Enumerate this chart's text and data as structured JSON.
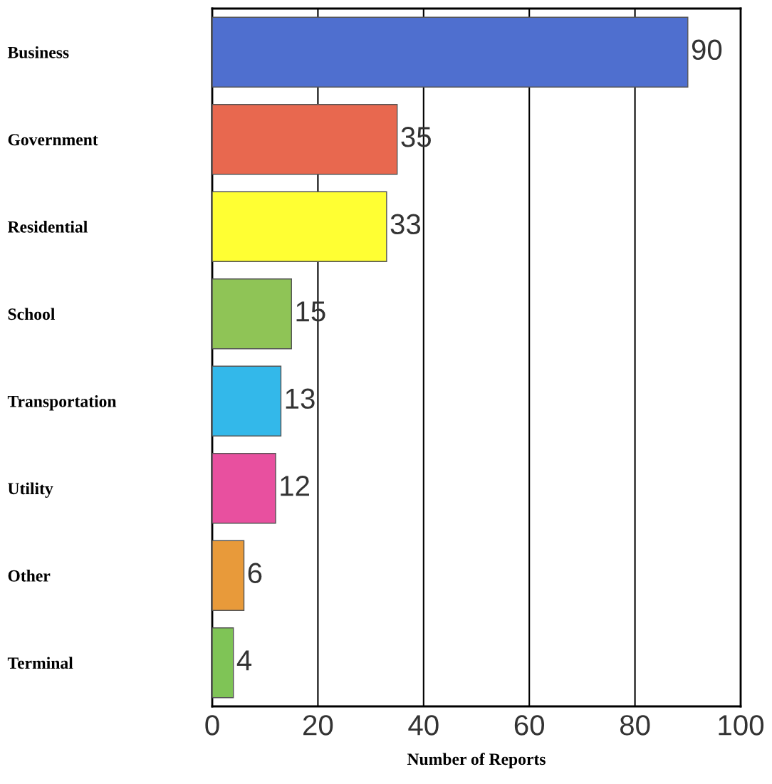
{
  "chart_data": {
    "type": "bar",
    "orientation": "horizontal",
    "xlabel": "Number of Reports",
    "categories": [
      "Business",
      "Government",
      "Residential",
      "School",
      "Transportation",
      "Utility",
      "Other",
      "Terminal"
    ],
    "values": [
      90,
      35,
      33,
      15,
      13,
      12,
      6,
      4
    ],
    "colors": [
      "#4f6fcf",
      "#e8684f",
      "#ffff33",
      "#8fc456",
      "#33b8ea",
      "#e8509f",
      "#e89a3a",
      "#7fc456"
    ],
    "xlim": [
      0,
      100
    ],
    "xticks": [
      0,
      20,
      40,
      60,
      80,
      100
    ],
    "grid": "x",
    "data_labels": true,
    "legend": false
  }
}
